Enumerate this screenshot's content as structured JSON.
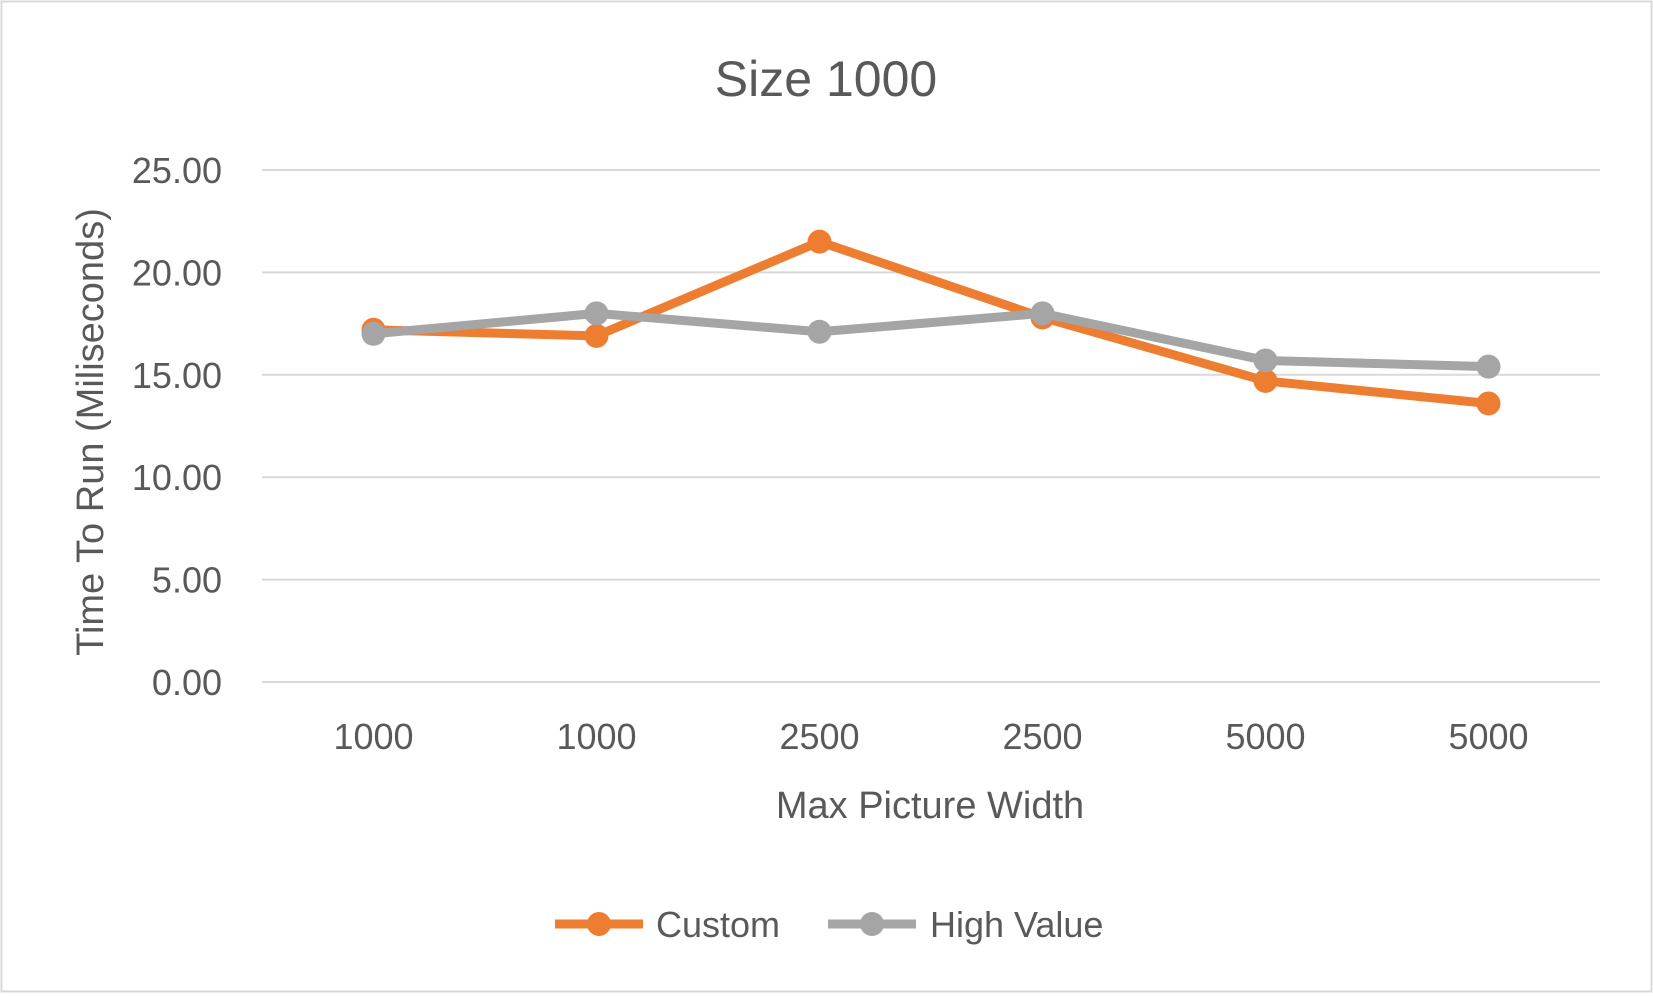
{
  "chart_data": {
    "type": "line",
    "title": "Size 1000",
    "xlabel": "Max Picture Width",
    "ylabel": "Time To Run (Miliseconds)",
    "categories": [
      "1000",
      "1000",
      "2500",
      "2500",
      "5000",
      "5000"
    ],
    "ylim": [
      0,
      25
    ],
    "yticks": [
      "0.00",
      "5.00",
      "10.00",
      "15.00",
      "20.00",
      "25.00"
    ],
    "grid": true,
    "legend_position": "bottom",
    "series": [
      {
        "name": "Custom",
        "color": "#ED7D31",
        "values": [
          17.2,
          16.9,
          21.5,
          17.8,
          14.7,
          13.6
        ]
      },
      {
        "name": "High Value",
        "color": "#A5A5A5",
        "values": [
          17.0,
          18.0,
          17.1,
          18.0,
          15.7,
          15.4
        ]
      }
    ]
  }
}
